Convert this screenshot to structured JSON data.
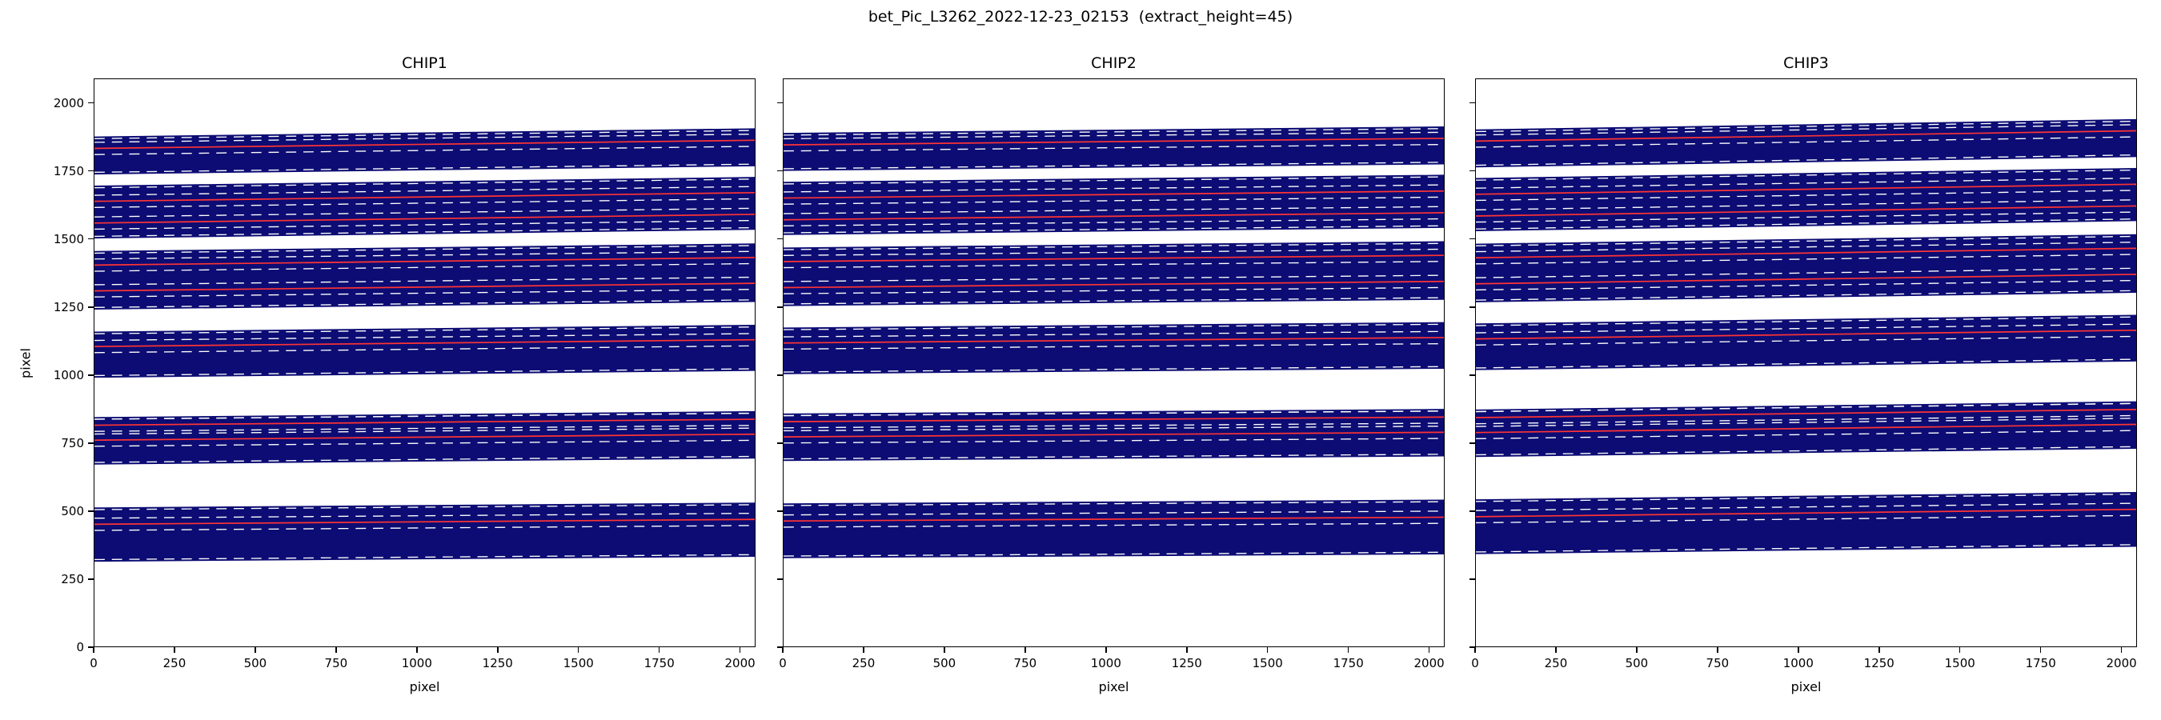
{
  "figure": {
    "title": "bet_Pic_L3262_2022-12-23_02153  (extract_height=45)"
  },
  "chart_data": {
    "type": "area",
    "title": "bet_Pic_L3262_2022-12-23_02153  (extract_height=45)",
    "description": "Echelle spectrograph order-trace map on three detector chips: dark navy bands are illuminated slit images per spectral order, white dashed lines are order/extraction window boundaries, red solid lines are trace centers.",
    "extract_height": 45,
    "extract_half_height": 22.5,
    "xlabel": "pixel",
    "ylabel": "pixel",
    "xlim": [
      0,
      2048
    ],
    "ylim": [
      0,
      2090
    ],
    "xticks": [
      0,
      250,
      500,
      750,
      1000,
      1250,
      1500,
      1750,
      2000
    ],
    "yticks": [
      0,
      250,
      500,
      750,
      1000,
      1250,
      1500,
      1750,
      2000
    ],
    "grid": false,
    "legend": "none",
    "colors": {
      "band": "#0c0c74",
      "trace": "#ff3333",
      "boundary": "#ffffff",
      "spine": "#000000",
      "background": "#ffffff"
    },
    "edge_dash_inset": 8,
    "panels": [
      {
        "title": "CHIP1",
        "groups": [
          {
            "y_bottom": 312,
            "y_top": 512,
            "slope": 18,
            "traces": [
              450
            ]
          },
          {
            "y_bottom": 670,
            "y_top": 845,
            "slope": 22,
            "traces": [
              760,
              815
            ]
          },
          {
            "y_bottom": 990,
            "y_top": 1160,
            "slope": 25,
            "traces": [
              1105
            ]
          },
          {
            "y_bottom": 1241,
            "y_top": 1457,
            "slope": 28,
            "traces": [
              1310,
              1405
            ]
          },
          {
            "y_bottom": 1503,
            "y_top": 1698,
            "slope": 32,
            "traces": [
              1560,
              1640
            ]
          },
          {
            "y_bottom": 1739,
            "y_top": 1879,
            "slope": 30,
            "traces": [
              1835
            ]
          }
        ]
      },
      {
        "title": "CHIP2",
        "groups": [
          {
            "y_bottom": 325,
            "y_top": 527,
            "slope": 14,
            "traces": [
              462
            ]
          },
          {
            "y_bottom": 683,
            "y_top": 858,
            "slope": 17,
            "traces": [
              772,
              828
            ]
          },
          {
            "y_bottom": 1003,
            "y_top": 1175,
            "slope": 20,
            "traces": [
              1118
            ]
          },
          {
            "y_bottom": 1254,
            "y_top": 1470,
            "slope": 23,
            "traces": [
              1322,
              1418
            ]
          },
          {
            "y_bottom": 1516,
            "y_top": 1712,
            "slope": 26,
            "traces": [
              1572,
              1652
            ]
          },
          {
            "y_bottom": 1752,
            "y_top": 1892,
            "slope": 24,
            "traces": [
              1848
            ]
          }
        ]
      },
      {
        "title": "CHIP3",
        "groups": [
          {
            "y_bottom": 340,
            "y_top": 542,
            "slope": 27,
            "traces": [
              478
            ]
          },
          {
            "y_bottom": 698,
            "y_top": 873,
            "slope": 30,
            "traces": [
              788,
              843
            ]
          },
          {
            "y_bottom": 1018,
            "y_top": 1190,
            "slope": 32,
            "traces": [
              1133
            ]
          },
          {
            "y_bottom": 1268,
            "y_top": 1484,
            "slope": 35,
            "traces": [
              1336,
              1432
            ]
          },
          {
            "y_bottom": 1530,
            "y_top": 1726,
            "slope": 37,
            "traces": [
              1586,
              1666
            ]
          },
          {
            "y_bottom": 1765,
            "y_top": 1905,
            "slope": 38,
            "traces": [
              1862
            ]
          }
        ]
      }
    ]
  }
}
